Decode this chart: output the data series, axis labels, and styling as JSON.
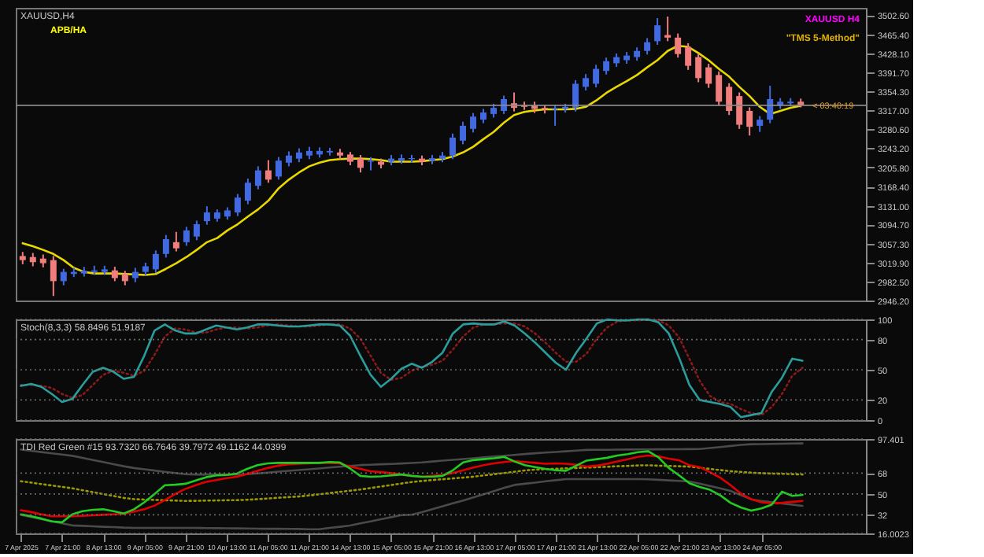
{
  "chart_data": [
    {
      "type": "candlestick",
      "title": "XAUUSD,H4",
      "categories": [
        null,
        null,
        null,
        null,
        null,
        null,
        null,
        null,
        null,
        null,
        null,
        null,
        null,
        null,
        null,
        null,
        null,
        null,
        null,
        null,
        null,
        null,
        null,
        null,
        null,
        null,
        null,
        null,
        null,
        null,
        null,
        null,
        null,
        null,
        null,
        null,
        null,
        null,
        null,
        null,
        null,
        null,
        null,
        null,
        null,
        null,
        null,
        null,
        null,
        null,
        null,
        null,
        null,
        null,
        null,
        null,
        null,
        null,
        null,
        null,
        null,
        null,
        null,
        null,
        null,
        null,
        null,
        null,
        null,
        null,
        null,
        null,
        null,
        null,
        null,
        null,
        null
      ],
      "ohlc": [
        [
          3033,
          3041,
          3017,
          3025
        ],
        [
          3031,
          3039,
          3013,
          3021
        ],
        [
          3028,
          3036,
          3011,
          3019
        ],
        [
          3025,
          3033,
          2955,
          2984
        ],
        [
          2984,
          3008,
          2976,
          3002
        ],
        [
          2998,
          3010,
          2992,
          3002
        ],
        [
          2999,
          3012,
          2993,
          3004
        ],
        [
          3002,
          3014,
          2996,
          3005
        ],
        [
          3002,
          3014,
          2996,
          3007
        ],
        [
          3005,
          3012,
          2984,
          2990
        ],
        [
          2998,
          3004,
          2976,
          2984
        ],
        [
          2990,
          3010,
          2982,
          3002
        ],
        [
          3002,
          3020,
          2995,
          3013
        ],
        [
          3007,
          3044,
          3000,
          3037
        ],
        [
          3037,
          3074,
          3030,
          3066
        ],
        [
          3060,
          3080,
          3042,
          3048
        ],
        [
          3060,
          3090,
          3053,
          3083
        ],
        [
          3071,
          3102,
          3064,
          3095
        ],
        [
          3101,
          3130,
          3094,
          3118
        ],
        [
          3106,
          3124,
          3100,
          3118
        ],
        [
          3110,
          3128,
          3104,
          3122
        ],
        [
          3118,
          3154,
          3111,
          3147
        ],
        [
          3141,
          3184,
          3134,
          3176
        ],
        [
          3170,
          3208,
          3163,
          3200
        ],
        [
          3200,
          3220,
          3176,
          3182
        ],
        [
          3188,
          3226,
          3182,
          3219
        ],
        [
          3215,
          3237,
          3208,
          3229
        ],
        [
          3223,
          3243,
          3216,
          3235
        ],
        [
          3229,
          3246,
          3222,
          3238
        ],
        [
          3231,
          3245,
          3225,
          3238
        ],
        [
          3235,
          3244,
          3229,
          3238
        ],
        [
          3235,
          3242,
          3222,
          3229
        ],
        [
          3231,
          3236,
          3210,
          3217
        ],
        [
          3223,
          3230,
          3196,
          3205
        ],
        [
          3217,
          3226,
          3200,
          3219
        ],
        [
          3217,
          3223,
          3204,
          3211
        ],
        [
          3217,
          3230,
          3210,
          3223
        ],
        [
          3219,
          3231,
          3213,
          3224
        ],
        [
          3222,
          3230,
          3215,
          3224
        ],
        [
          3223,
          3229,
          3210,
          3217
        ],
        [
          3219,
          3230,
          3212,
          3224
        ],
        [
          3223,
          3236,
          3216,
          3229
        ],
        [
          3229,
          3272,
          3222,
          3264
        ],
        [
          3258,
          3295,
          3251,
          3287
        ],
        [
          3281,
          3312,
          3274,
          3305
        ],
        [
          3299,
          3320,
          3292,
          3313
        ],
        [
          3310,
          3330,
          3303,
          3322
        ],
        [
          3316,
          3346,
          3310,
          3339
        ],
        [
          3331,
          3352,
          3315,
          3322
        ],
        [
          3327,
          3334,
          3318,
          3324
        ],
        [
          3327,
          3334,
          3312,
          3320
        ],
        [
          3322,
          3328,
          3311,
          3319
        ],
        [
          3319,
          3328,
          3287,
          3322
        ],
        [
          3320,
          3330,
          3313,
          3324
        ],
        [
          3322,
          3376,
          3315,
          3369
        ],
        [
          3363,
          3388,
          3356,
          3380
        ],
        [
          3369,
          3406,
          3362,
          3398
        ],
        [
          3394,
          3420,
          3387,
          3413
        ],
        [
          3409,
          3428,
          3402,
          3421
        ],
        [
          3415,
          3431,
          3408,
          3424
        ],
        [
          3421,
          3440,
          3414,
          3433
        ],
        [
          3433,
          3458,
          3426,
          3450
        ],
        [
          3452,
          3497,
          3445,
          3483
        ],
        [
          3464,
          3500,
          3452,
          3459
        ],
        [
          3459,
          3467,
          3420,
          3427
        ],
        [
          3441,
          3448,
          3396,
          3404
        ],
        [
          3421,
          3428,
          3372,
          3380
        ],
        [
          3401,
          3408,
          3361,
          3369
        ],
        [
          3386,
          3393,
          3326,
          3334
        ],
        [
          3363,
          3370,
          3308,
          3316
        ],
        [
          3345,
          3352,
          3281,
          3289
        ],
        [
          3316,
          3323,
          3268,
          3285
        ],
        [
          3287,
          3306,
          3275,
          3299
        ],
        [
          3299,
          3365,
          3292,
          3339
        ],
        [
          3328,
          3341,
          3320,
          3334
        ],
        [
          3331,
          3341,
          3325,
          3334
        ],
        [
          3334,
          3340,
          3323,
          3328
        ]
      ],
      "colors": [
        "#f27d7d",
        "#f27d7d",
        "#f27d7d",
        "#f27d7d",
        "#4169e1",
        "#4169e1",
        "#4169e1",
        "#4169e1",
        "#4169e1",
        "#f27d7d",
        "#f27d7d",
        "#4169e1",
        "#4169e1",
        "#4169e1",
        "#4169e1",
        "#f27d7d",
        "#4169e1",
        "#4169e1",
        "#4169e1",
        "#4169e1",
        "#4169e1",
        "#4169e1",
        "#4169e1",
        "#4169e1",
        "#f27d7d",
        "#4169e1",
        "#4169e1",
        "#4169e1",
        "#4169e1",
        "#4169e1",
        "#4169e1",
        "#f27d7d",
        "#f27d7d",
        "#f27d7d",
        "#4169e1",
        "#f27d7d",
        "#4169e1",
        "#4169e1",
        "#4169e1",
        "#f27d7d",
        "#4169e1",
        "#4169e1",
        "#4169e1",
        "#4169e1",
        "#4169e1",
        "#4169e1",
        "#4169e1",
        "#4169e1",
        "#f27d7d",
        "#f27d7d",
        "#f27d7d",
        "#f27d7d",
        "#4169e1",
        "#4169e1",
        "#4169e1",
        "#4169e1",
        "#4169e1",
        "#4169e1",
        "#4169e1",
        "#4169e1",
        "#4169e1",
        "#4169e1",
        "#4169e1",
        "#f27d7d",
        "#f27d7d",
        "#f27d7d",
        "#f27d7d",
        "#f27d7d",
        "#f27d7d",
        "#f27d7d",
        "#f27d7d",
        "#f27d7d",
        "#4169e1",
        "#4169e1",
        "#4169e1",
        "#4169e1",
        "#f27d7d"
      ],
      "series": [
        {
          "type": "line",
          "color": "#e8d800",
          "values": [
            3058,
            3052,
            3045,
            3037,
            3025,
            3010,
            3002,
            2999,
            2999,
            2999,
            2998,
            2997,
            2996,
            2998,
            3008,
            3019,
            3031,
            3045,
            3060,
            3068,
            3083,
            3095,
            3110,
            3124,
            3141,
            3165,
            3182,
            3196,
            3208,
            3215,
            3220,
            3222,
            3223,
            3223,
            3222,
            3220,
            3217,
            3217,
            3217,
            3218,
            3220,
            3222,
            3227,
            3235,
            3246,
            3261,
            3275,
            3293,
            3308,
            3314,
            3317,
            3319,
            3319,
            3319,
            3320,
            3324,
            3336,
            3351,
            3363,
            3374,
            3386,
            3401,
            3415,
            3433,
            3443,
            3441,
            3429,
            3415,
            3398,
            3383,
            3363,
            3345,
            3324,
            3310,
            3316,
            3322,
            3326
          ]
        }
      ],
      "ylim": [
        2946.2,
        3517
      ],
      "yticks": [
        {
          "value": 2946.2,
          "label": "2946.20"
        },
        {
          "value": 2982.5,
          "label": "2982.50"
        },
        {
          "value": 3019.9,
          "label": "3019.90"
        },
        {
          "value": 3057.3,
          "label": "3057.30"
        },
        {
          "value": 3094.7,
          "label": "3094.70"
        },
        {
          "value": 3131,
          "label": "3131.00"
        },
        {
          "value": 3168.4,
          "label": "3168.40"
        },
        {
          "value": 3205.8,
          "label": "3205.80"
        },
        {
          "value": 3243.2,
          "label": "3243.20"
        },
        {
          "value": 3280.6,
          "label": "3280.60"
        },
        {
          "value": 3317,
          "label": "3317.00"
        },
        {
          "value": 3354.3,
          "label": "3354.30"
        },
        {
          "value": 3391.7,
          "label": "3391.70"
        },
        {
          "value": 3428.1,
          "label": "3428.10"
        },
        {
          "value": 3465.4,
          "label": "3465.40"
        },
        {
          "value": 3502.6,
          "label": "3502.60"
        }
      ],
      "ref_lines": [
        {
          "axis": "y",
          "value": 3327,
          "color": "#8a8a8a"
        }
      ],
      "annotations": [
        "APB/HA",
        "XAUUSD H4",
        "\"TMS 5-Method\"",
        {
          "text": "< 03:40:19",
          "y": 3327
        }
      ],
      "tick_labels": "y"
    },
    {
      "type": "line",
      "title": "Stoch(8,3,3) 58.8496 51.9187",
      "categories": [
        null,
        null,
        null,
        null,
        null,
        null,
        null,
        null,
        null,
        null,
        null,
        null,
        null,
        null,
        null,
        null,
        null,
        null,
        null,
        null,
        null,
        null,
        null,
        null,
        null,
        null,
        null,
        null,
        null,
        null,
        null,
        null,
        null,
        null,
        null,
        null,
        null,
        null,
        null,
        null,
        null,
        null,
        null,
        null,
        null,
        null,
        null,
        null,
        null,
        null,
        null,
        null,
        null,
        null,
        null,
        null,
        null,
        null,
        null,
        null,
        null,
        null,
        null,
        null,
        null,
        null,
        null,
        null,
        null,
        null,
        null,
        null,
        null,
        null,
        null,
        null,
        null
      ],
      "series": [
        {
          "color": "#8b1a1a",
          "line_style": "dotted",
          "values": [
            35,
            35,
            34,
            32,
            26,
            22,
            25,
            35,
            45,
            49,
            47,
            44,
            49,
            65,
            83,
            91,
            90,
            87,
            87,
            90,
            92,
            92,
            91,
            92,
            94,
            95,
            94,
            93,
            93,
            94,
            95,
            95,
            91,
            81,
            64,
            47,
            40,
            42,
            49,
            53,
            55,
            59,
            70,
            83,
            92,
            95,
            95,
            96,
            96,
            93,
            86,
            77,
            67,
            58,
            58,
            66,
            81,
            92,
            98,
            99,
            99,
            100,
            99,
            94,
            82,
            61,
            39,
            24,
            18,
            16,
            11,
            7,
            5,
            13,
            26,
            44,
            52
          ]
        },
        {
          "color": "#2a9d9d",
          "values": [
            34,
            36,
            33,
            26,
            18,
            21,
            35,
            48,
            52,
            48,
            41,
            43,
            64,
            89,
            95,
            89,
            86,
            86,
            90,
            94,
            92,
            90,
            92,
            95,
            95,
            94,
            93,
            93,
            94,
            95,
            95,
            94,
            84,
            64,
            45,
            33,
            41,
            51,
            56,
            52,
            58,
            67,
            86,
            95,
            96,
            95,
            95,
            98,
            94,
            86,
            77,
            67,
            57,
            50,
            67,
            81,
            96,
            100,
            99,
            99,
            100,
            100,
            97,
            86,
            62,
            35,
            20,
            18,
            16,
            13,
            3,
            5,
            7,
            28,
            42,
            61,
            59
          ]
        }
      ],
      "ylim": [
        0,
        100
      ],
      "yticks": [
        0,
        20,
        50,
        80,
        100
      ],
      "grid": "y",
      "tick_labels": "y"
    },
    {
      "type": "line",
      "title": "TDI Red Green #15 93.7320 66.7646 39.7972 49.1162 44.0399",
      "categories": [
        "7 Apr 2025",
        null,
        null,
        null,
        "7 Apr 21:00",
        null,
        null,
        null,
        "8 Apr 13:00",
        null,
        null,
        null,
        "9 Apr 05:00",
        null,
        null,
        null,
        "9 Apr 21:00",
        null,
        null,
        null,
        "10 Apr 13:00",
        null,
        null,
        null,
        "11 Apr 05:00",
        null,
        null,
        null,
        "11 Apr 21:00",
        null,
        null,
        null,
        "14 Apr 13:00",
        null,
        null,
        null,
        "15 Apr 05:00",
        null,
        null,
        null,
        "15 Apr 21:00",
        null,
        null,
        null,
        "16 Apr 13:00",
        null,
        null,
        null,
        "17 Apr 05:00",
        null,
        null,
        null,
        "17 Apr 21:00",
        null,
        null,
        null,
        "21 Apr 13:00",
        null,
        null,
        null,
        "22 Apr 05:00",
        null,
        null,
        null,
        "22 Apr 21:00",
        null,
        null,
        null,
        "23 Apr 13:00",
        null,
        null,
        null,
        "24 Apr 05:00",
        null,
        null,
        null,
        null
      ],
      "series": [
        {
          "color": "#4a4a4a",
          "values": [
            88.3,
            87.2,
            86.1,
            85,
            84,
            82.9,
            81.1,
            79.3,
            77.5,
            75.7,
            73.9,
            72.4,
            71.3,
            70.2,
            69.1,
            68.1,
            67,
            66.8,
            66.8,
            66.8,
            66.8,
            66.8,
            67,
            67.7,
            68.4,
            69.2,
            69.9,
            70.6,
            71.3,
            72,
            72.8,
            73.5,
            74.2,
            74.9,
            75.2,
            75.6,
            75.9,
            76.3,
            76.7,
            77.2,
            78,
            78.7,
            79.4,
            80.1,
            80.8,
            81.6,
            82.3,
            83,
            83.7,
            84.4,
            85.1,
            85.7,
            86.2,
            86.8,
            87.4,
            88,
            88.1,
            88.1,
            88.2,
            88.3,
            88.4,
            88.4,
            88.5,
            88.6,
            88.6,
            88.7,
            88.8,
            89.6,
            90.5,
            91.4,
            92.3,
            92.9,
            93,
            93.2,
            93.3,
            93.5,
            93.6
          ]
        },
        {
          "color": "#4a4a4a",
          "values": [
            31.9,
            30.1,
            28.3,
            26.5,
            24.7,
            22.9,
            22.5,
            22.1,
            21.7,
            21.4,
            21,
            20.8,
            20.8,
            20.8,
            20.8,
            20.8,
            20.8,
            20.7,
            20.6,
            20.5,
            20.4,
            20.3,
            20.2,
            20.1,
            20,
            20,
            19.9,
            19.8,
            19.6,
            19.6,
            20.7,
            21.7,
            22.8,
            24.6,
            26.4,
            28.2,
            30,
            31.8,
            32.1,
            34.3,
            36.9,
            39.4,
            41.9,
            44.4,
            47,
            49.7,
            52.5,
            55.3,
            57.8,
            58.8,
            59.8,
            60.9,
            61.9,
            62.8,
            62.8,
            62.8,
            62.8,
            62.8,
            62.8,
            62.8,
            62.8,
            62.6,
            62.2,
            61.7,
            61.3,
            60.8,
            58.9,
            56.8,
            54.8,
            52.6,
            49,
            45.4,
            43.9,
            42.9,
            41.8,
            40.8,
            39.7
          ]
        },
        {
          "color": "#9a9a00",
          "line_style": "dotted",
          "values": [
            61,
            59.8,
            58.5,
            57.3,
            56.1,
            54.9,
            53.2,
            51.6,
            49.9,
            48.3,
            46.6,
            45.5,
            45.2,
            44.9,
            44.6,
            44.3,
            44,
            44.1,
            44.3,
            44.4,
            44.6,
            44.7,
            45,
            45.5,
            46.1,
            46.7,
            47.3,
            47.8,
            48.7,
            49.7,
            50.7,
            51.8,
            52.8,
            53.8,
            55.1,
            56.4,
            57.7,
            59,
            60.3,
            61.2,
            62,
            62.7,
            63.4,
            64.1,
            64.9,
            66,
            67,
            68.1,
            69.2,
            70.3,
            71,
            71.3,
            71.7,
            72.1,
            72.4,
            72.8,
            73.1,
            73.5,
            73.9,
            74.2,
            74.6,
            74.7,
            74.4,
            74.2,
            73.9,
            73.6,
            72.6,
            71.6,
            70.6,
            69.6,
            69,
            68.4,
            67.9,
            67.6,
            67.4,
            67.1,
            66.8
          ]
        },
        {
          "color": "#e00000",
          "values": [
            36,
            34.4,
            32.4,
            30.8,
            30.8,
            30.8,
            31.2,
            31.6,
            32,
            32.4,
            32.8,
            34.8,
            36.8,
            40,
            44.8,
            50,
            54.4,
            57.6,
            60.4,
            62,
            63.6,
            64.8,
            67.2,
            70,
            72.4,
            74.4,
            75.6,
            76,
            76.4,
            76.8,
            76.8,
            76.4,
            73.6,
            71.6,
            69.6,
            68.8,
            68,
            66.8,
            65.6,
            64.8,
            65.6,
            66.4,
            68,
            70.4,
            72.8,
            74.8,
            76.4,
            77.6,
            78.4,
            77.6,
            76.8,
            76,
            76.4,
            76,
            75.2,
            73.6,
            74.4,
            76,
            78,
            80,
            82,
            83.2,
            82.4,
            80.4,
            79,
            74.8,
            73.2,
            68.8,
            64,
            57.6,
            50.4,
            45.6,
            42.8,
            42,
            42.4,
            43.2,
            44
          ]
        },
        {
          "color": "#22cc22",
          "values": [
            32.4,
            30.8,
            28.8,
            26.4,
            25.6,
            32.4,
            35.2,
            36.4,
            36.8,
            35.2,
            33.2,
            36.8,
            42.8,
            50,
            57.6,
            58,
            58.8,
            61.6,
            64.4,
            66,
            66.4,
            67.6,
            71.6,
            74.8,
            76.4,
            76.8,
            76.8,
            76.8,
            76.8,
            76.8,
            77.6,
            77.2,
            72,
            65.6,
            64.8,
            65.2,
            66,
            66.8,
            65.6,
            64.8,
            64.8,
            65.6,
            70.4,
            77.2,
            79.2,
            80,
            80.8,
            82,
            78,
            74.8,
            73.2,
            71.6,
            70.4,
            70,
            74.4,
            78.8,
            80,
            81.2,
            83.2,
            84.4,
            86,
            86.8,
            81.6,
            72.4,
            66,
            59.2,
            56,
            53.6,
            48.8,
            42.4,
            38.4,
            35.6,
            37.6,
            40.8,
            52,
            48.4,
            49.2
          ]
        }
      ],
      "ylim": [
        16.0023,
        97.401
      ],
      "yticks": [
        16.0023,
        32,
        50,
        68,
        97.401
      ],
      "grid": "y"
    }
  ]
}
